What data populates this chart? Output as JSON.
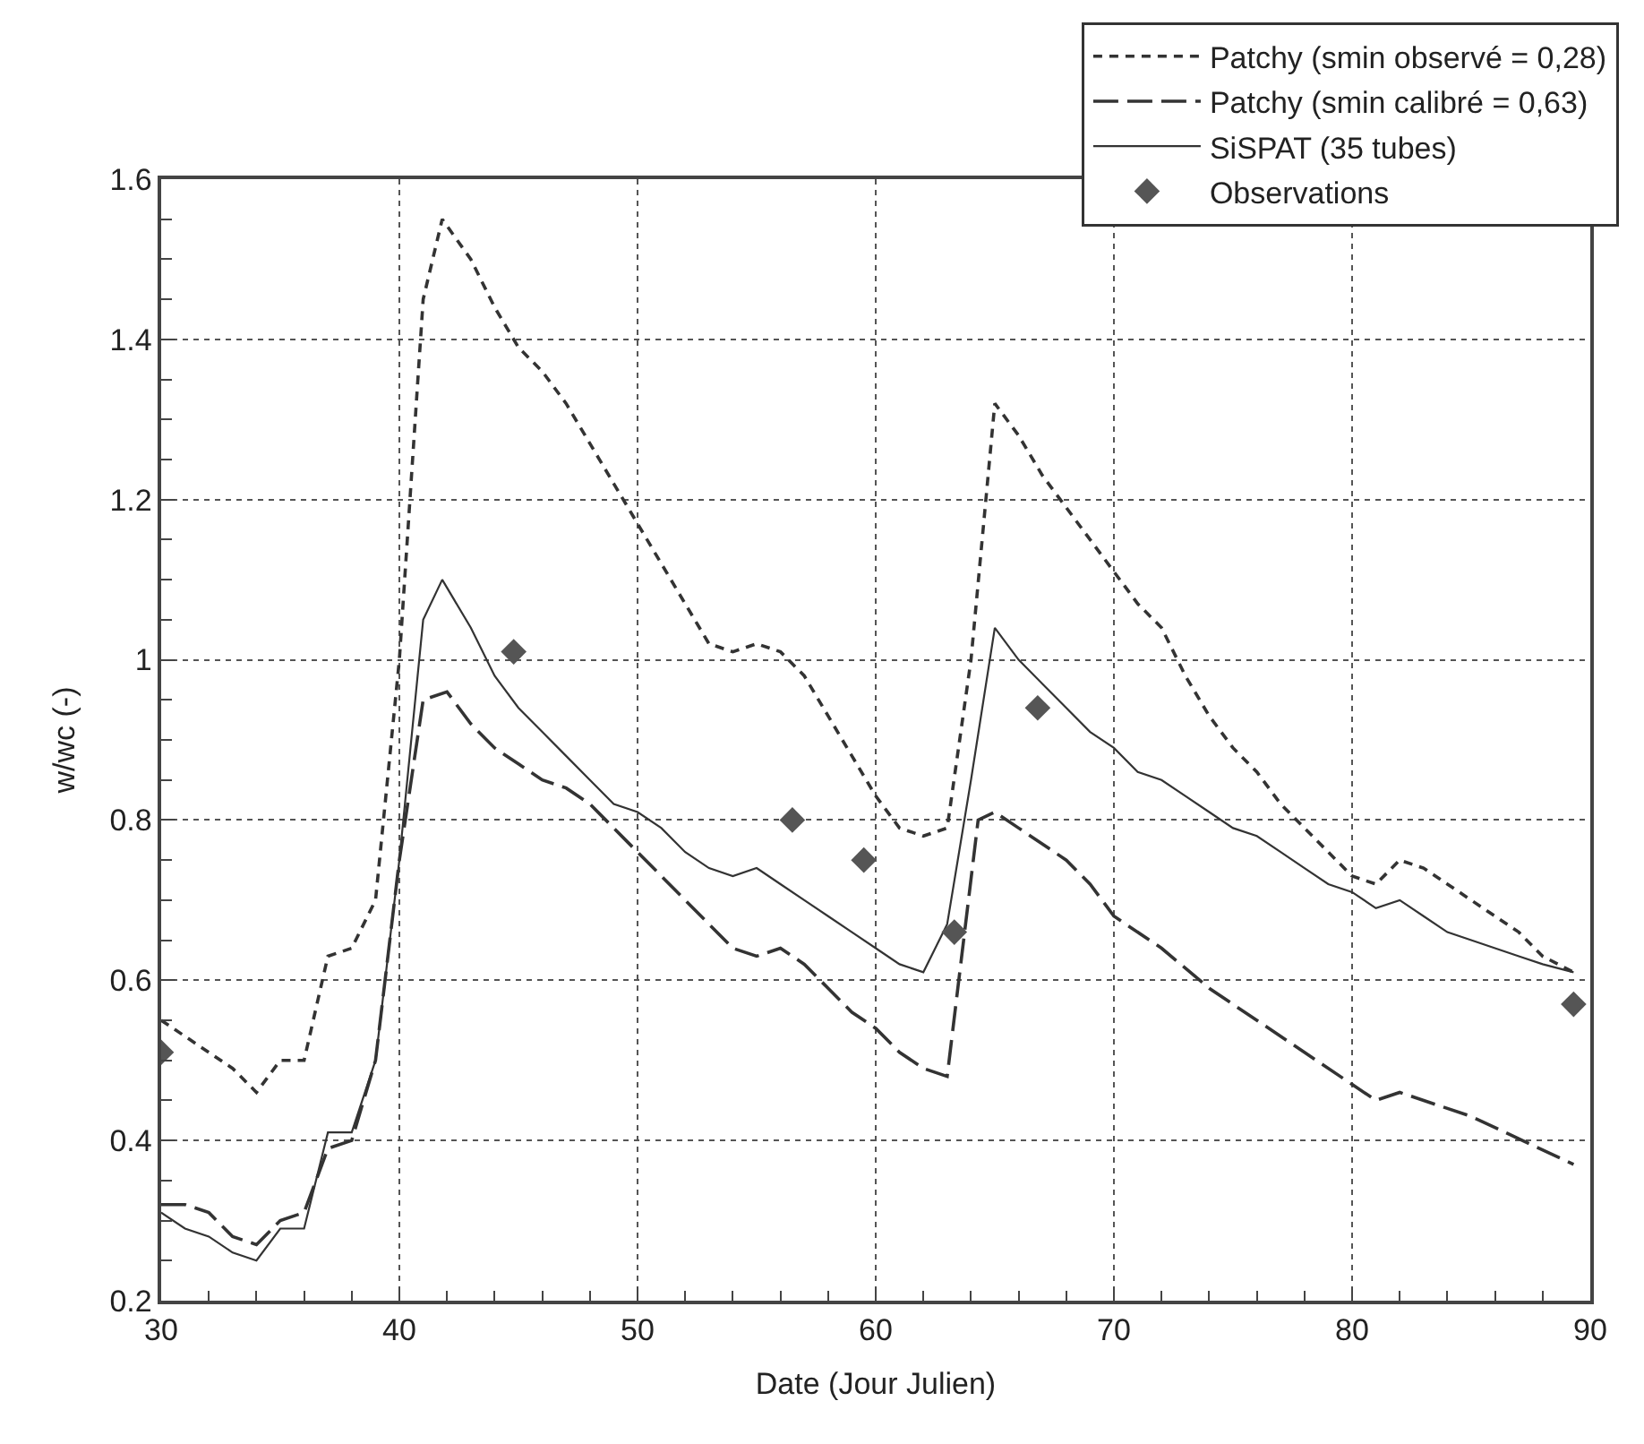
{
  "chart_data": {
    "type": "line",
    "xlabel": "Date (Jour Julien)",
    "ylabel": "w/wc (-)",
    "xlim": [
      30,
      90
    ],
    "xticks": [
      30,
      40,
      50,
      60,
      70,
      80,
      90
    ],
    "ylim": [
      0.2,
      1.6
    ],
    "yticks": [
      0.2,
      0.4,
      0.6,
      0.8,
      1,
      1.2,
      1.4,
      1.6
    ],
    "grid": true,
    "legend": "top right",
    "marker": "none",
    "series": [
      {
        "name": "Patchy (smin observé = 0,28)",
        "color": "#333333",
        "line_style": "dashed",
        "x": [
          30,
          31,
          32,
          33,
          34,
          35,
          36,
          37,
          38,
          39,
          40,
          41,
          41.8,
          43,
          44,
          45,
          46,
          47,
          48,
          49,
          50,
          51,
          52,
          53,
          54,
          55,
          56,
          57,
          58,
          59,
          60,
          61,
          62,
          63,
          64,
          65,
          66,
          67,
          68,
          69,
          70,
          71,
          72,
          73,
          74,
          75,
          76,
          77,
          78,
          79,
          80,
          81,
          82,
          83,
          84,
          85,
          86,
          87,
          88,
          89.3
        ],
        "values": [
          0.55,
          0.53,
          0.51,
          0.49,
          0.46,
          0.5,
          0.5,
          0.63,
          0.64,
          0.7,
          1.0,
          1.45,
          1.55,
          1.5,
          1.44,
          1.39,
          1.36,
          1.32,
          1.27,
          1.22,
          1.17,
          1.12,
          1.07,
          1.02,
          1.01,
          1.02,
          1.01,
          0.98,
          0.93,
          0.88,
          0.83,
          0.79,
          0.78,
          0.79,
          1.0,
          1.32,
          1.28,
          1.23,
          1.19,
          1.15,
          1.11,
          1.07,
          1.04,
          0.98,
          0.93,
          0.89,
          0.86,
          0.82,
          0.79,
          0.76,
          0.73,
          0.72,
          0.75,
          0.74,
          0.72,
          0.7,
          0.68,
          0.66,
          0.63,
          0.61
        ]
      },
      {
        "name": "Patchy (smin calibré = 0,63)",
        "color": "#333333",
        "line_style": "longdash",
        "x": [
          30,
          31,
          32,
          33,
          34,
          35,
          36,
          37,
          38,
          39,
          40,
          41,
          42,
          43,
          44,
          45,
          46,
          47,
          48,
          49,
          50,
          51,
          52,
          53,
          54,
          55,
          56,
          57,
          58,
          59,
          60,
          61,
          62,
          63,
          64.3,
          65,
          66,
          67,
          68,
          69,
          70,
          72,
          74,
          76,
          78,
          80,
          81,
          82,
          85,
          89.3
        ],
        "values": [
          0.32,
          0.32,
          0.31,
          0.28,
          0.27,
          0.3,
          0.31,
          0.39,
          0.4,
          0.5,
          0.75,
          0.95,
          0.96,
          0.92,
          0.89,
          0.87,
          0.85,
          0.84,
          0.82,
          0.79,
          0.76,
          0.73,
          0.7,
          0.67,
          0.64,
          0.63,
          0.64,
          0.62,
          0.59,
          0.56,
          0.54,
          0.51,
          0.49,
          0.48,
          0.8,
          0.81,
          0.79,
          0.77,
          0.75,
          0.72,
          0.68,
          0.64,
          0.59,
          0.55,
          0.51,
          0.47,
          0.45,
          0.46,
          0.43,
          0.37
        ]
      },
      {
        "name": "SiSPAT (35 tubes)",
        "color": "#333333",
        "line_style": "solid",
        "x": [
          30,
          31,
          32,
          33,
          34,
          35,
          36,
          37,
          38,
          39,
          40,
          41,
          41.8,
          43,
          44,
          45,
          46,
          47,
          48,
          49,
          50,
          51,
          52,
          53,
          54,
          55,
          56,
          57,
          58,
          59,
          60,
          61,
          62,
          63,
          64,
          65,
          66,
          67,
          68,
          69,
          70,
          71,
          72,
          73,
          74,
          75,
          76,
          77,
          78,
          79,
          80,
          81,
          82,
          83,
          84,
          85,
          86,
          87,
          88,
          89.3
        ],
        "values": [
          0.31,
          0.29,
          0.28,
          0.26,
          0.25,
          0.29,
          0.29,
          0.41,
          0.41,
          0.5,
          0.75,
          1.05,
          1.1,
          1.04,
          0.98,
          0.94,
          0.91,
          0.88,
          0.85,
          0.82,
          0.81,
          0.79,
          0.76,
          0.74,
          0.73,
          0.74,
          0.72,
          0.7,
          0.68,
          0.66,
          0.64,
          0.62,
          0.61,
          0.67,
          0.85,
          1.04,
          1.0,
          0.97,
          0.94,
          0.91,
          0.89,
          0.86,
          0.85,
          0.83,
          0.81,
          0.79,
          0.78,
          0.76,
          0.74,
          0.72,
          0.71,
          0.69,
          0.7,
          0.68,
          0.66,
          0.65,
          0.64,
          0.63,
          0.62,
          0.61
        ]
      },
      {
        "name": "Observations",
        "type": "scatter",
        "marker": "diamond",
        "color": "#555555",
        "x": [
          30,
          44.8,
          56.5,
          59.5,
          63.3,
          66.8,
          89.3
        ],
        "values": [
          0.51,
          1.01,
          0.8,
          0.75,
          0.66,
          0.94,
          0.57
        ]
      }
    ]
  }
}
